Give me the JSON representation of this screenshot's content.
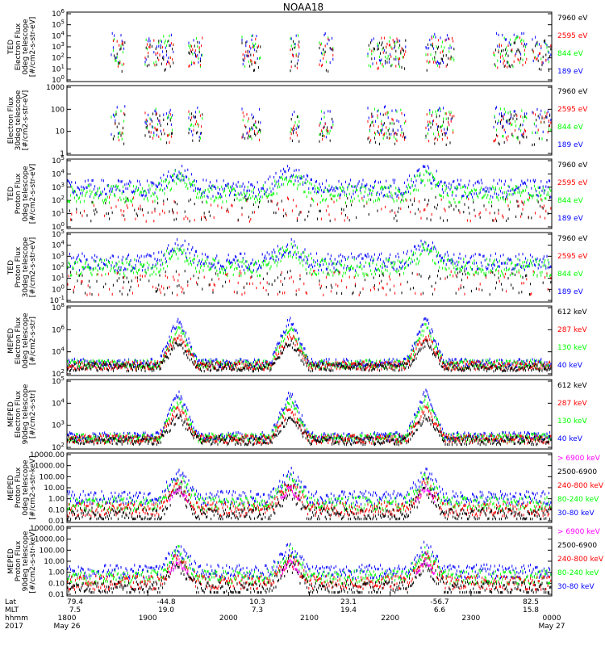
{
  "title": "NOAA18",
  "x_axis": {
    "rows": [
      {
        "label": "Lat",
        "values": [
          "79.4",
          "-44.8",
          "10.3",
          "23.1",
          "-56.7",
          "82.5"
        ]
      },
      {
        "label": "MLT",
        "values": [
          "7.5",
          "19.0",
          "7.3",
          "19.4",
          "6.6",
          "15.8"
        ]
      },
      {
        "label": "hhmm",
        "values": [
          "1800",
          "1900",
          "2000",
          "2100",
          "2200",
          "2300",
          "0000"
        ]
      }
    ],
    "year": "2017",
    "start_date": "May 26",
    "end_date": "May 27"
  },
  "colors": {
    "blue": "#0000ff",
    "red": "#ff0000",
    "green": "#00ff00",
    "black": "#000000",
    "magenta": "#ff00ff"
  },
  "chart_data": [
    {
      "type": "scatter",
      "ylabel": [
        "TED",
        "Electron Flux",
        "0deg telescope",
        "[#/cm2-s-str-eV]"
      ],
      "yticks": [
        "10^0",
        "10^1",
        "10^2",
        "10^3",
        "10^4",
        "10^5",
        "10^6"
      ],
      "log": true,
      "legend": [
        {
          "label": "7960 eV",
          "color": "black"
        },
        {
          "label": "2595 eV",
          "color": "red"
        },
        {
          "label": "844 eV",
          "color": "green"
        },
        {
          "label": "189 eV",
          "color": "blue"
        }
      ]
    },
    {
      "type": "scatter",
      "ylabel": [
        "Electron Flux",
        "30deg telescope",
        "[#/cm2-s-str-eV]"
      ],
      "yticks": [
        "1",
        "10",
        "100",
        "1000"
      ],
      "log": true,
      "legend": [
        {
          "label": "7960 eV",
          "color": "black"
        },
        {
          "label": "2595 eV",
          "color": "red"
        },
        {
          "label": "844 eV",
          "color": "green"
        },
        {
          "label": "189 eV",
          "color": "blue"
        }
      ]
    },
    {
      "type": "scatter",
      "ylabel": [
        "TED",
        "Proton Flux",
        "0deg telescope",
        "[#/cm2-s-str-eV]"
      ],
      "yticks": [
        "10^0",
        "10^1",
        "10^2",
        "10^3",
        "10^4",
        "10^5"
      ],
      "log": true,
      "legend": [
        {
          "label": "7960 eV",
          "color": "black"
        },
        {
          "label": "2595 eV",
          "color": "red"
        },
        {
          "label": "844 eV",
          "color": "green"
        },
        {
          "label": "189 eV",
          "color": "blue"
        }
      ]
    },
    {
      "type": "scatter",
      "ylabel": [
        "TED",
        "Proton Flux",
        "30deg telescope",
        "[#/cm2-s-str-eV]"
      ],
      "yticks": [
        "10^-1",
        "10^0",
        "10^1",
        "10^2",
        "10^3",
        "10^4",
        "10^5"
      ],
      "log": true,
      "legend": [
        {
          "label": "7960 eV",
          "color": "black"
        },
        {
          "label": "2595 eV",
          "color": "red"
        },
        {
          "label": "844 eV",
          "color": "green"
        },
        {
          "label": "189 eV",
          "color": "blue"
        }
      ]
    },
    {
      "type": "scatter",
      "ylabel": [
        "MEPED",
        "Electron Flux",
        "0deg telescope",
        "[#/cm2-s-str]"
      ],
      "yticks": [
        "10^2",
        "10^4",
        "10^6",
        "10^8"
      ],
      "log": true,
      "legend": [
        {
          "label": "612 keV",
          "color": "black"
        },
        {
          "label": "287 keV",
          "color": "red"
        },
        {
          "label": "130 keV",
          "color": "green"
        },
        {
          "label": "40 keV",
          "color": "blue"
        }
      ]
    },
    {
      "type": "scatter",
      "ylabel": [
        "MEPED",
        "Electron Flux",
        "90deg telescope",
        "[#/cm2-s-str]"
      ],
      "yticks": [
        "10^2",
        "10^3",
        "10^4",
        "10^5"
      ],
      "log": true,
      "legend": [
        {
          "label": "612 keV",
          "color": "black"
        },
        {
          "label": "287 keV",
          "color": "red"
        },
        {
          "label": "130 keV",
          "color": "green"
        },
        {
          "label": "40 keV",
          "color": "blue"
        }
      ]
    },
    {
      "type": "scatter",
      "ylabel": [
        "MEPED",
        "Proton Flux",
        "0deg telescope",
        "[#/cm2-s-str-keV]"
      ],
      "yticks": [
        "0.01",
        "0.10",
        "1.00",
        "10.00",
        "100.00",
        "1000.00",
        "10000.00"
      ],
      "log": true,
      "legend": [
        {
          "label": "> 6900 keV",
          "color": "magenta"
        },
        {
          "label": "2500-6900",
          "color": "black"
        },
        {
          "label": "240-800 keV",
          "color": "red"
        },
        {
          "label": "80-240 keV",
          "color": "green"
        },
        {
          "label": "30-80 keV",
          "color": "blue"
        }
      ]
    },
    {
      "type": "scatter",
      "ylabel": [
        "MEPED",
        "Proton Flux",
        "90deg telescope",
        "[#/cm2-s-str-keV]"
      ],
      "yticks": [
        "0.01",
        "0.10",
        "1.00",
        "10.00",
        "100.00",
        "1000.00",
        "10000.00"
      ],
      "log": true,
      "legend": [
        {
          "label": "> 6900 keV",
          "color": "magenta"
        },
        {
          "label": "2500-6900",
          "color": "black"
        },
        {
          "label": "240-800 keV",
          "color": "red"
        },
        {
          "label": "80-240 keV",
          "color": "green"
        },
        {
          "label": "30-80 keV",
          "color": "blue"
        }
      ]
    }
  ]
}
